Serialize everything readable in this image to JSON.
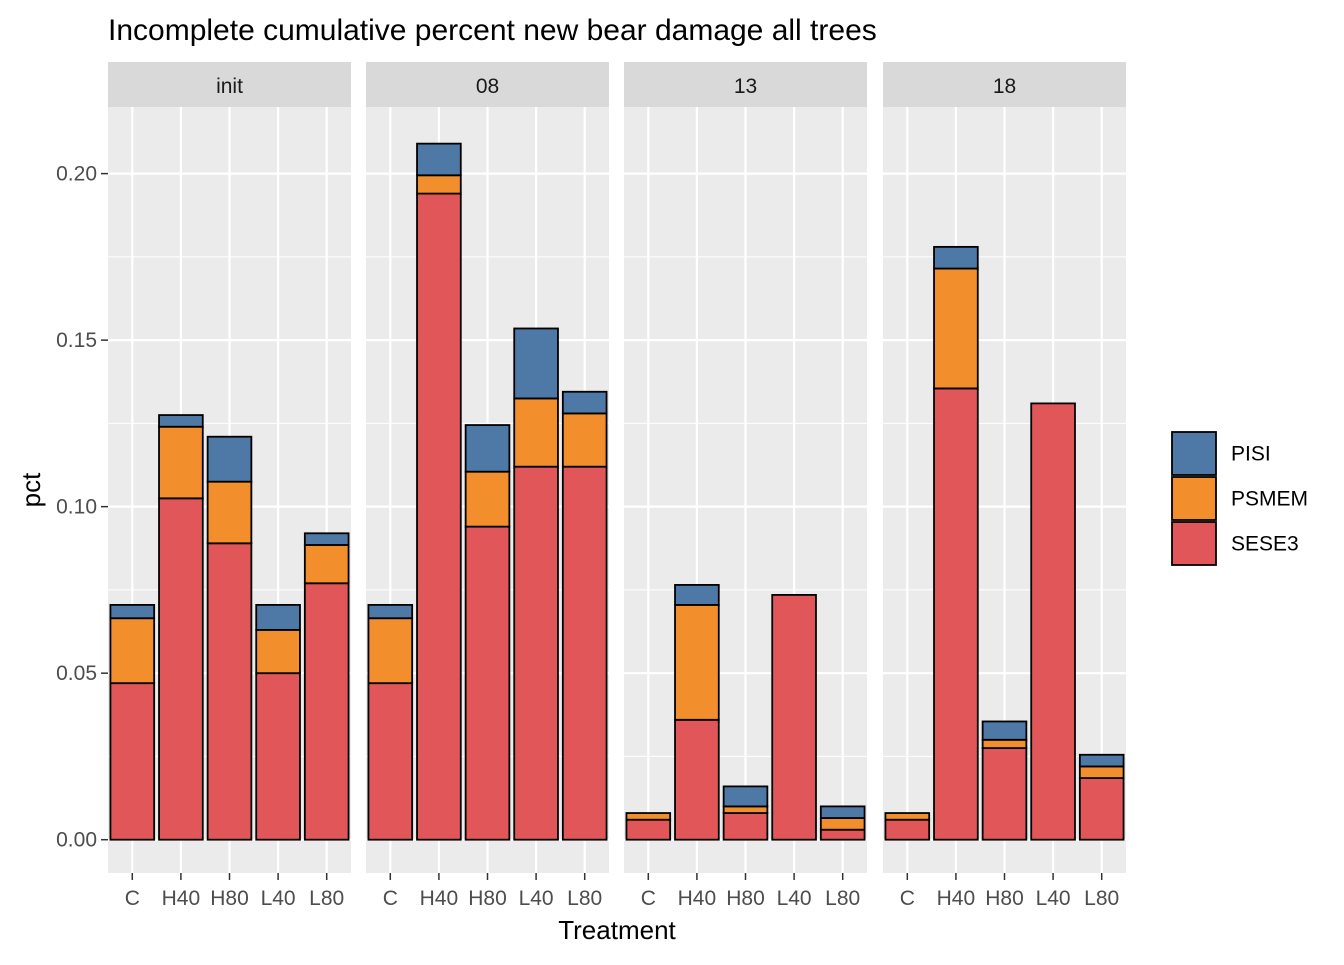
{
  "chart_data": {
    "type": "bar",
    "stacked": true,
    "title": "Incomplete cumulative percent new bear damage all trees",
    "xlabel": "Treatment",
    "ylabel": "pct",
    "ylim": [
      -0.01,
      0.22
    ],
    "yticks": [
      "0.00",
      "0.05",
      "0.10",
      "0.15",
      "0.20"
    ],
    "grid": true,
    "legend_position": "right",
    "categories": [
      "C",
      "H40",
      "H80",
      "L40",
      "L80"
    ],
    "series_order": [
      "SESE3",
      "PSMEM",
      "PISI"
    ],
    "legend": [
      "PISI",
      "PSMEM",
      "SESE3"
    ],
    "colors": {
      "PISI": "#4e79a7",
      "PSMEM": "#f28e2b",
      "SESE3": "#e15759"
    },
    "facets": [
      {
        "label": "init",
        "series": [
          {
            "name": "SESE3",
            "values": [
              0.047,
              0.1025,
              0.089,
              0.05,
              0.077
            ]
          },
          {
            "name": "PSMEM",
            "values": [
              0.0195,
              0.0215,
              0.0185,
              0.013,
              0.0115
            ]
          },
          {
            "name": "PISI",
            "values": [
              0.004,
              0.0035,
              0.0135,
              0.0075,
              0.0035
            ]
          }
        ]
      },
      {
        "label": "08",
        "series": [
          {
            "name": "SESE3",
            "values": [
              0.047,
              0.194,
              0.094,
              0.112,
              0.112
            ]
          },
          {
            "name": "PSMEM",
            "values": [
              0.0195,
              0.0055,
              0.0165,
              0.0205,
              0.016
            ]
          },
          {
            "name": "PISI",
            "values": [
              0.004,
              0.0095,
              0.014,
              0.021,
              0.0065
            ]
          }
        ]
      },
      {
        "label": "13",
        "series": [
          {
            "name": "SESE3",
            "values": [
              0.006,
              0.036,
              0.008,
              0.0735,
              0.003
            ]
          },
          {
            "name": "PSMEM",
            "values": [
              0.002,
              0.0345,
              0.002,
              0.0,
              0.0035
            ]
          },
          {
            "name": "PISI",
            "values": [
              0.0,
              0.006,
              0.006,
              0.0,
              0.0035
            ]
          }
        ]
      },
      {
        "label": "18",
        "series": [
          {
            "name": "SESE3",
            "values": [
              0.006,
              0.1355,
              0.0275,
              0.131,
              0.0185
            ]
          },
          {
            "name": "PSMEM",
            "values": [
              0.002,
              0.036,
              0.0025,
              0.0,
              0.0035
            ]
          },
          {
            "name": "PISI",
            "values": [
              0.0,
              0.0065,
              0.0055,
              0.0,
              0.0035
            ]
          }
        ]
      }
    ]
  }
}
